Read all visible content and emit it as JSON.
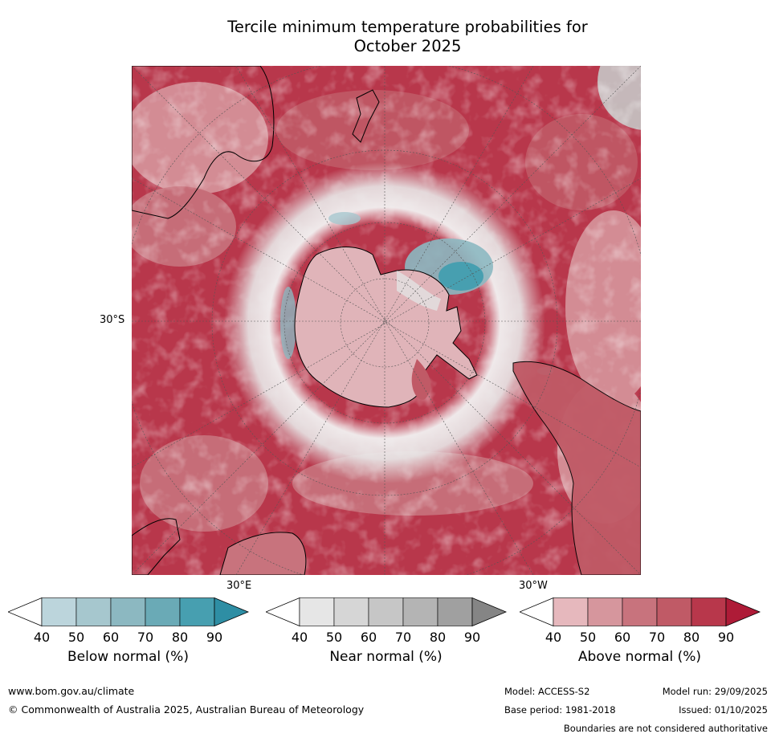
{
  "title_line1": "Tercile minimum temperature probabilities for",
  "title_line2": "October 2025",
  "map": {
    "projection": "south-polar-stereographic",
    "lat_label": "30°S",
    "lon_label_left": "30°E",
    "lon_label_right": "30°W"
  },
  "colorbars": [
    {
      "label": "Below normal (%)",
      "ticks": [
        "40",
        "50",
        "60",
        "70",
        "80",
        "90"
      ],
      "colors": [
        "#ffffff",
        "#bcd5dc",
        "#a6c7ce",
        "#8cb8c1",
        "#6aaab6",
        "#479fb0",
        "#2e8ea4"
      ]
    },
    {
      "label": "Near normal (%)",
      "ticks": [
        "40",
        "50",
        "60",
        "70",
        "80",
        "90"
      ],
      "colors": [
        "#ffffff",
        "#e6e6e6",
        "#d6d6d6",
        "#c6c6c6",
        "#b4b4b4",
        "#a0a0a0",
        "#858585"
      ]
    },
    {
      "label": "Above normal (%)",
      "ticks": [
        "40",
        "50",
        "60",
        "70",
        "80",
        "90"
      ],
      "colors": [
        "#ffffff",
        "#e6b8bd",
        "#d6969d",
        "#c8737d",
        "#c05a66",
        "#b8374b",
        "#ae1b37"
      ]
    }
  ],
  "footer": {
    "website": "www.bom.gov.au/climate",
    "copyright": "© Commonwealth of Australia 2025, Australian Bureau of Meteorology",
    "model": "Model: ACCESS-S2",
    "base_period": "Base period: 1981-2018",
    "model_run": "Model run: 29/09/2025",
    "issued": "Issued: 01/10/2025",
    "disclaimer": "Boundaries are not considered authoritative"
  }
}
